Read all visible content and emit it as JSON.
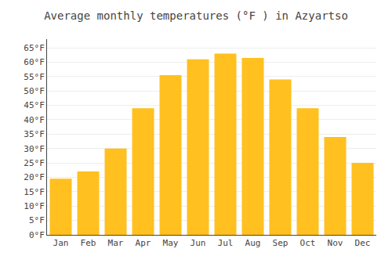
{
  "chart_data": {
    "type": "bar",
    "title": "Average monthly temperatures (°F ) in Azyartso",
    "categories": [
      "Jan",
      "Feb",
      "Mar",
      "Apr",
      "May",
      "Jun",
      "Jul",
      "Aug",
      "Sep",
      "Oct",
      "Nov",
      "Dec"
    ],
    "values": [
      19.5,
      22,
      30,
      44,
      55.5,
      61,
      63,
      61.5,
      54,
      44,
      34,
      25
    ],
    "color": "#FFC020",
    "ylim": [
      0,
      68
    ],
    "yticks": [
      {
        "value": 0,
        "label": "0°F"
      },
      {
        "value": 5,
        "label": "5°F"
      },
      {
        "value": 10,
        "label": "10°F"
      },
      {
        "value": 15,
        "label": "15°F"
      },
      {
        "value": 20,
        "label": "20°F"
      },
      {
        "value": 25,
        "label": "25°F"
      },
      {
        "value": 30,
        "label": "30°F"
      },
      {
        "value": 35,
        "label": "35°F"
      },
      {
        "value": 40,
        "label": "40°F"
      },
      {
        "value": 45,
        "label": "45°F"
      },
      {
        "value": 50,
        "label": "50°F"
      },
      {
        "value": 55,
        "label": "55°F"
      },
      {
        "value": 60,
        "label": "60°F"
      },
      {
        "value": 65,
        "label": "65°F"
      }
    ],
    "grid": true
  }
}
